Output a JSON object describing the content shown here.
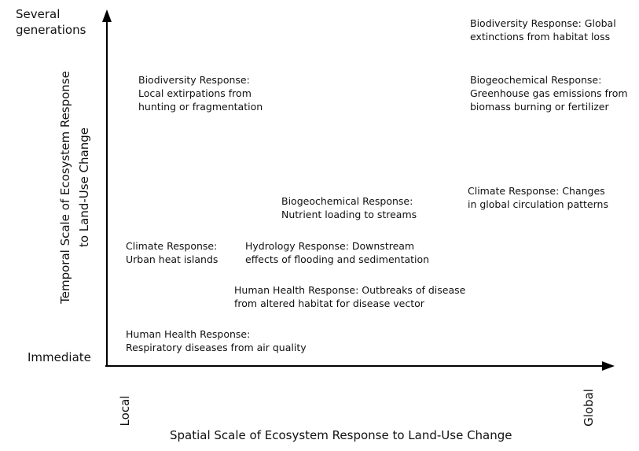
{
  "axes": {
    "y_title_line1": "Temporal Scale of Ecosystem Response",
    "y_title_line2": "to Land-Use Change",
    "y_top_line1": "Several",
    "y_top_line2": "generations",
    "y_bottom": "Immediate",
    "x_title": "Spatial Scale of Ecosystem Response to Land-Use Change",
    "x_left": "Local",
    "x_right": "Global"
  },
  "responses": [
    {
      "line1": "Biodiversity Response: Global",
      "line2": "extinctions from habitat loss"
    },
    {
      "line1": "Biodiversity Response:",
      "line2": "Local extirpations from",
      "line3": "hunting or fragmentation"
    },
    {
      "line1": "Biogeochemical Response:",
      "line2": "Greenhouse gas emissions from",
      "line3": "biomass burning or fertilizer"
    },
    {
      "line1": "Biogeochemical Response:",
      "line2": "Nutrient loading to streams"
    },
    {
      "line1": "Climate Response: Changes",
      "line2": "in global circulation patterns"
    },
    {
      "line1": "Climate Response:",
      "line2": "Urban heat islands"
    },
    {
      "line1": "Hydrology Response: Downstream",
      "line2": "effects of flooding and sedimentation"
    },
    {
      "line1": "Human Health Response: Outbreaks of disease",
      "line2": "from altered habitat for disease vector"
    },
    {
      "line1": "Human Health Response:",
      "line2": "Respiratory diseases from air quality"
    }
  ]
}
